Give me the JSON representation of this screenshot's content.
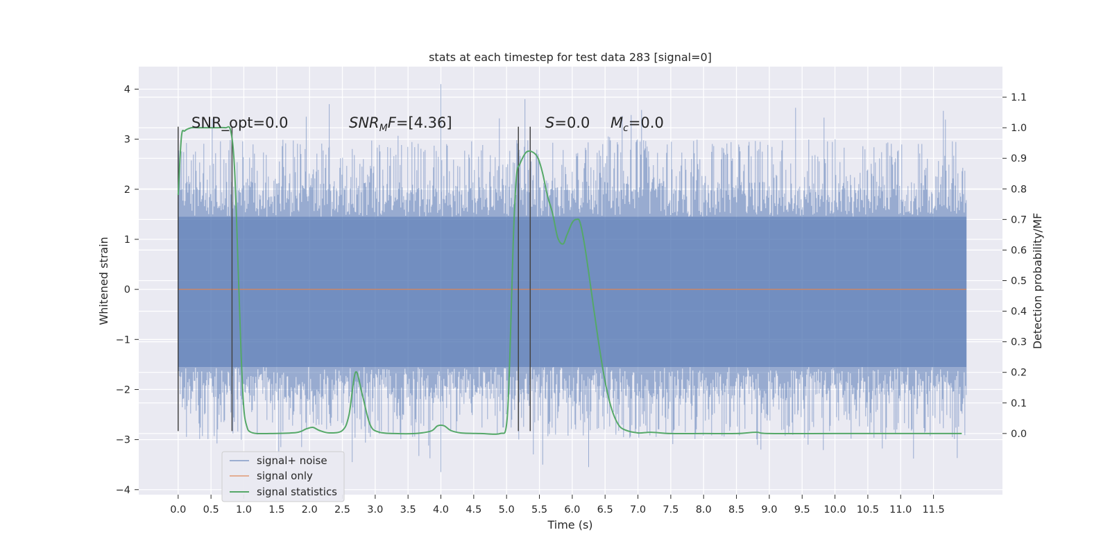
{
  "chart_data": {
    "type": "line",
    "title": "stats at each timestep for test data 283 [signal=0]",
    "xlabel": "Time (s)",
    "ylabel": "Whitened strain",
    "ylabel_right": "Detection probability/MF",
    "xlim": [
      -0.6,
      12.55
    ],
    "ylim": [
      -4.1,
      4.45
    ],
    "ylim_right": [
      -0.2,
      1.2
    ],
    "x_ticks": [
      "0.0",
      "0.5",
      "1.0",
      "1.5",
      "2.0",
      "2.5",
      "3.0",
      "3.5",
      "4.0",
      "4.5",
      "5.0",
      "5.5",
      "6.0",
      "6.5",
      "7.0",
      "7.5",
      "8.0",
      "8.5",
      "9.0",
      "9.5",
      "10.0",
      "10.5",
      "11.0",
      "11.5"
    ],
    "y_ticks": [
      "4",
      "3",
      "2",
      "1",
      "0",
      "−1",
      "−2",
      "−3",
      "−4"
    ],
    "y_ticks_right": [
      "1.1",
      "1.0",
      "0.9",
      "0.8",
      "0.7",
      "0.6",
      "0.5",
      "0.4",
      "0.3",
      "0.2",
      "0.1",
      "0.0"
    ],
    "grid": true,
    "legend_position": "lower-left",
    "annotations": {
      "snr_opt": "SNR_opt=0.0",
      "snr_mf_base": "SNR",
      "snr_mf_sub": "M",
      "snr_mf_rest": "F=[4.36]",
      "s_sym": "S",
      "s_val": "=0.0",
      "mc_sym": "M",
      "mc_sub": "c",
      "mc_val": "=0.0"
    },
    "vertical_markers_x": [
      0.0,
      0.82,
      5.18,
      5.36
    ],
    "series": [
      {
        "name": "signal+ noise",
        "color": "#4c72b0",
        "axis": "left",
        "description_stats": {
          "x_start": 0.0,
          "x_end": 12.0,
          "band_low": -1.55,
          "band_high": 1.45,
          "typical_max": 3.0,
          "typical_min": -3.0,
          "peak_max": 4.1,
          "peak_min": -3.65
        }
      },
      {
        "name": "signal only",
        "color": "#dd8452",
        "axis": "left",
        "x": [
          0.0,
          12.0
        ],
        "y": [
          0.0,
          0.0
        ]
      },
      {
        "name": "signal statistics",
        "color": "#55a868",
        "axis": "right",
        "x": [
          0.0,
          0.05,
          0.1,
          0.2,
          0.3,
          0.45,
          0.6,
          0.72,
          0.8,
          0.86,
          0.92,
          0.96,
          1.0,
          1.05,
          1.1,
          1.2,
          1.4,
          1.8,
          1.95,
          2.05,
          2.15,
          2.3,
          2.5,
          2.6,
          2.7,
          2.8,
          2.92,
          3.05,
          3.3,
          3.6,
          3.85,
          3.95,
          4.05,
          4.15,
          4.3,
          4.6,
          4.9,
          5.0,
          5.05,
          5.1,
          5.15,
          5.2,
          5.3,
          5.4,
          5.48,
          5.55,
          5.62,
          5.7,
          5.78,
          5.86,
          5.92,
          6.0,
          6.06,
          6.12,
          6.2,
          6.3,
          6.4,
          6.5,
          6.6,
          6.7,
          6.8,
          7.0,
          7.2,
          7.5,
          8.0,
          8.5,
          8.8,
          9.0,
          10.0,
          11.0,
          11.93
        ],
        "y": [
          0.78,
          0.97,
          0.99,
          1.0,
          1.0,
          1.0,
          1.0,
          1.0,
          0.99,
          0.86,
          0.5,
          0.25,
          0.08,
          0.02,
          0.005,
          0.0,
          0.0,
          0.003,
          0.015,
          0.02,
          0.01,
          0.002,
          0.01,
          0.06,
          0.2,
          0.13,
          0.03,
          0.005,
          0.0,
          0.0,
          0.008,
          0.025,
          0.025,
          0.01,
          0.002,
          0.0,
          0.0,
          0.03,
          0.25,
          0.62,
          0.84,
          0.88,
          0.92,
          0.92,
          0.9,
          0.85,
          0.78,
          0.72,
          0.64,
          0.62,
          0.65,
          0.69,
          0.7,
          0.69,
          0.6,
          0.45,
          0.3,
          0.17,
          0.08,
          0.03,
          0.012,
          0.002,
          0.004,
          0.0,
          0.0,
          0.0,
          0.004,
          0.0,
          0.0,
          0.0,
          0.0
        ]
      }
    ]
  }
}
